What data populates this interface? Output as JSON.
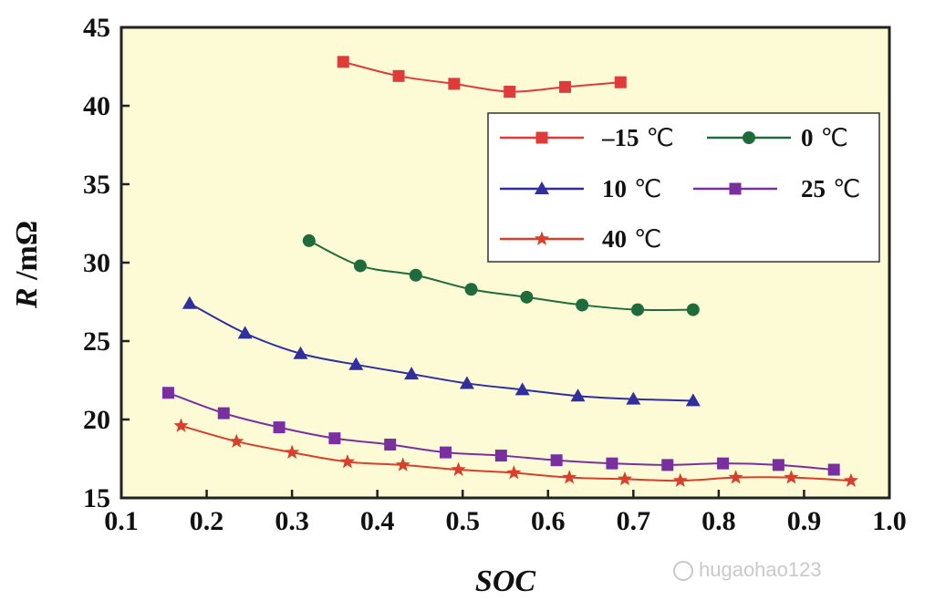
{
  "chart_data": {
    "type": "line",
    "xlabel": "SOC",
    "ylabel_prefix": "R",
    "ylabel_suffix": " /mΩ",
    "xlim": [
      0.1,
      1.0
    ],
    "ylim": [
      15,
      45
    ],
    "xticks": [
      0.1,
      0.2,
      0.3,
      0.4,
      0.5,
      0.6,
      0.7,
      0.8,
      0.9,
      1.0
    ],
    "xtick_labels": [
      "0.1",
      "0.2",
      "0.3",
      "0.4",
      "0.5",
      "0.6",
      "0.7",
      "0.8",
      "0.9",
      "1.0"
    ],
    "yticks": [
      15,
      20,
      25,
      30,
      35,
      40,
      45
    ],
    "ytick_labels": [
      "15",
      "20",
      "25",
      "30",
      "35",
      "40",
      "45"
    ],
    "grid": false,
    "legend_position": "right",
    "plot_background": "#fdfbd6",
    "series": [
      {
        "name": "–15",
        "unit": "℃",
        "color": "#e03b3b",
        "marker": "square",
        "x": [
          0.36,
          0.425,
          0.49,
          0.555,
          0.62,
          0.685
        ],
        "y": [
          42.8,
          41.9,
          41.4,
          40.9,
          41.2,
          41.5
        ]
      },
      {
        "name": "0",
        "unit": "℃",
        "color": "#1f6b3b",
        "marker": "circle",
        "x": [
          0.32,
          0.38,
          0.445,
          0.51,
          0.575,
          0.64,
          0.705,
          0.77
        ],
        "y": [
          31.4,
          29.8,
          29.2,
          28.3,
          27.8,
          27.3,
          27.0,
          27.0
        ]
      },
      {
        "name": "10",
        "unit": "℃",
        "color": "#2f2f9e",
        "marker": "triangle",
        "x": [
          0.18,
          0.245,
          0.31,
          0.375,
          0.44,
          0.505,
          0.57,
          0.635,
          0.7,
          0.77
        ],
        "y": [
          27.4,
          25.5,
          24.2,
          23.5,
          22.9,
          22.3,
          21.9,
          21.5,
          21.3,
          21.2
        ]
      },
      {
        "name": "25",
        "unit": "℃",
        "color": "#7a2fa0",
        "marker": "square",
        "x": [
          0.155,
          0.22,
          0.285,
          0.35,
          0.415,
          0.48,
          0.545,
          0.61,
          0.675,
          0.74,
          0.805,
          0.87,
          0.935
        ],
        "y": [
          21.7,
          20.4,
          19.5,
          18.8,
          18.4,
          17.9,
          17.7,
          17.4,
          17.2,
          17.1,
          17.2,
          17.1,
          16.8
        ]
      },
      {
        "name": "40",
        "unit": "℃",
        "color": "#d9402b",
        "marker": "star",
        "x": [
          0.17,
          0.235,
          0.3,
          0.365,
          0.43,
          0.495,
          0.56,
          0.625,
          0.69,
          0.755,
          0.82,
          0.885,
          0.955
        ],
        "y": [
          19.6,
          18.6,
          17.9,
          17.3,
          17.1,
          16.8,
          16.6,
          16.3,
          16.2,
          16.1,
          16.3,
          16.3,
          16.1
        ]
      }
    ]
  },
  "watermark": {
    "text": "hugaohao123"
  }
}
